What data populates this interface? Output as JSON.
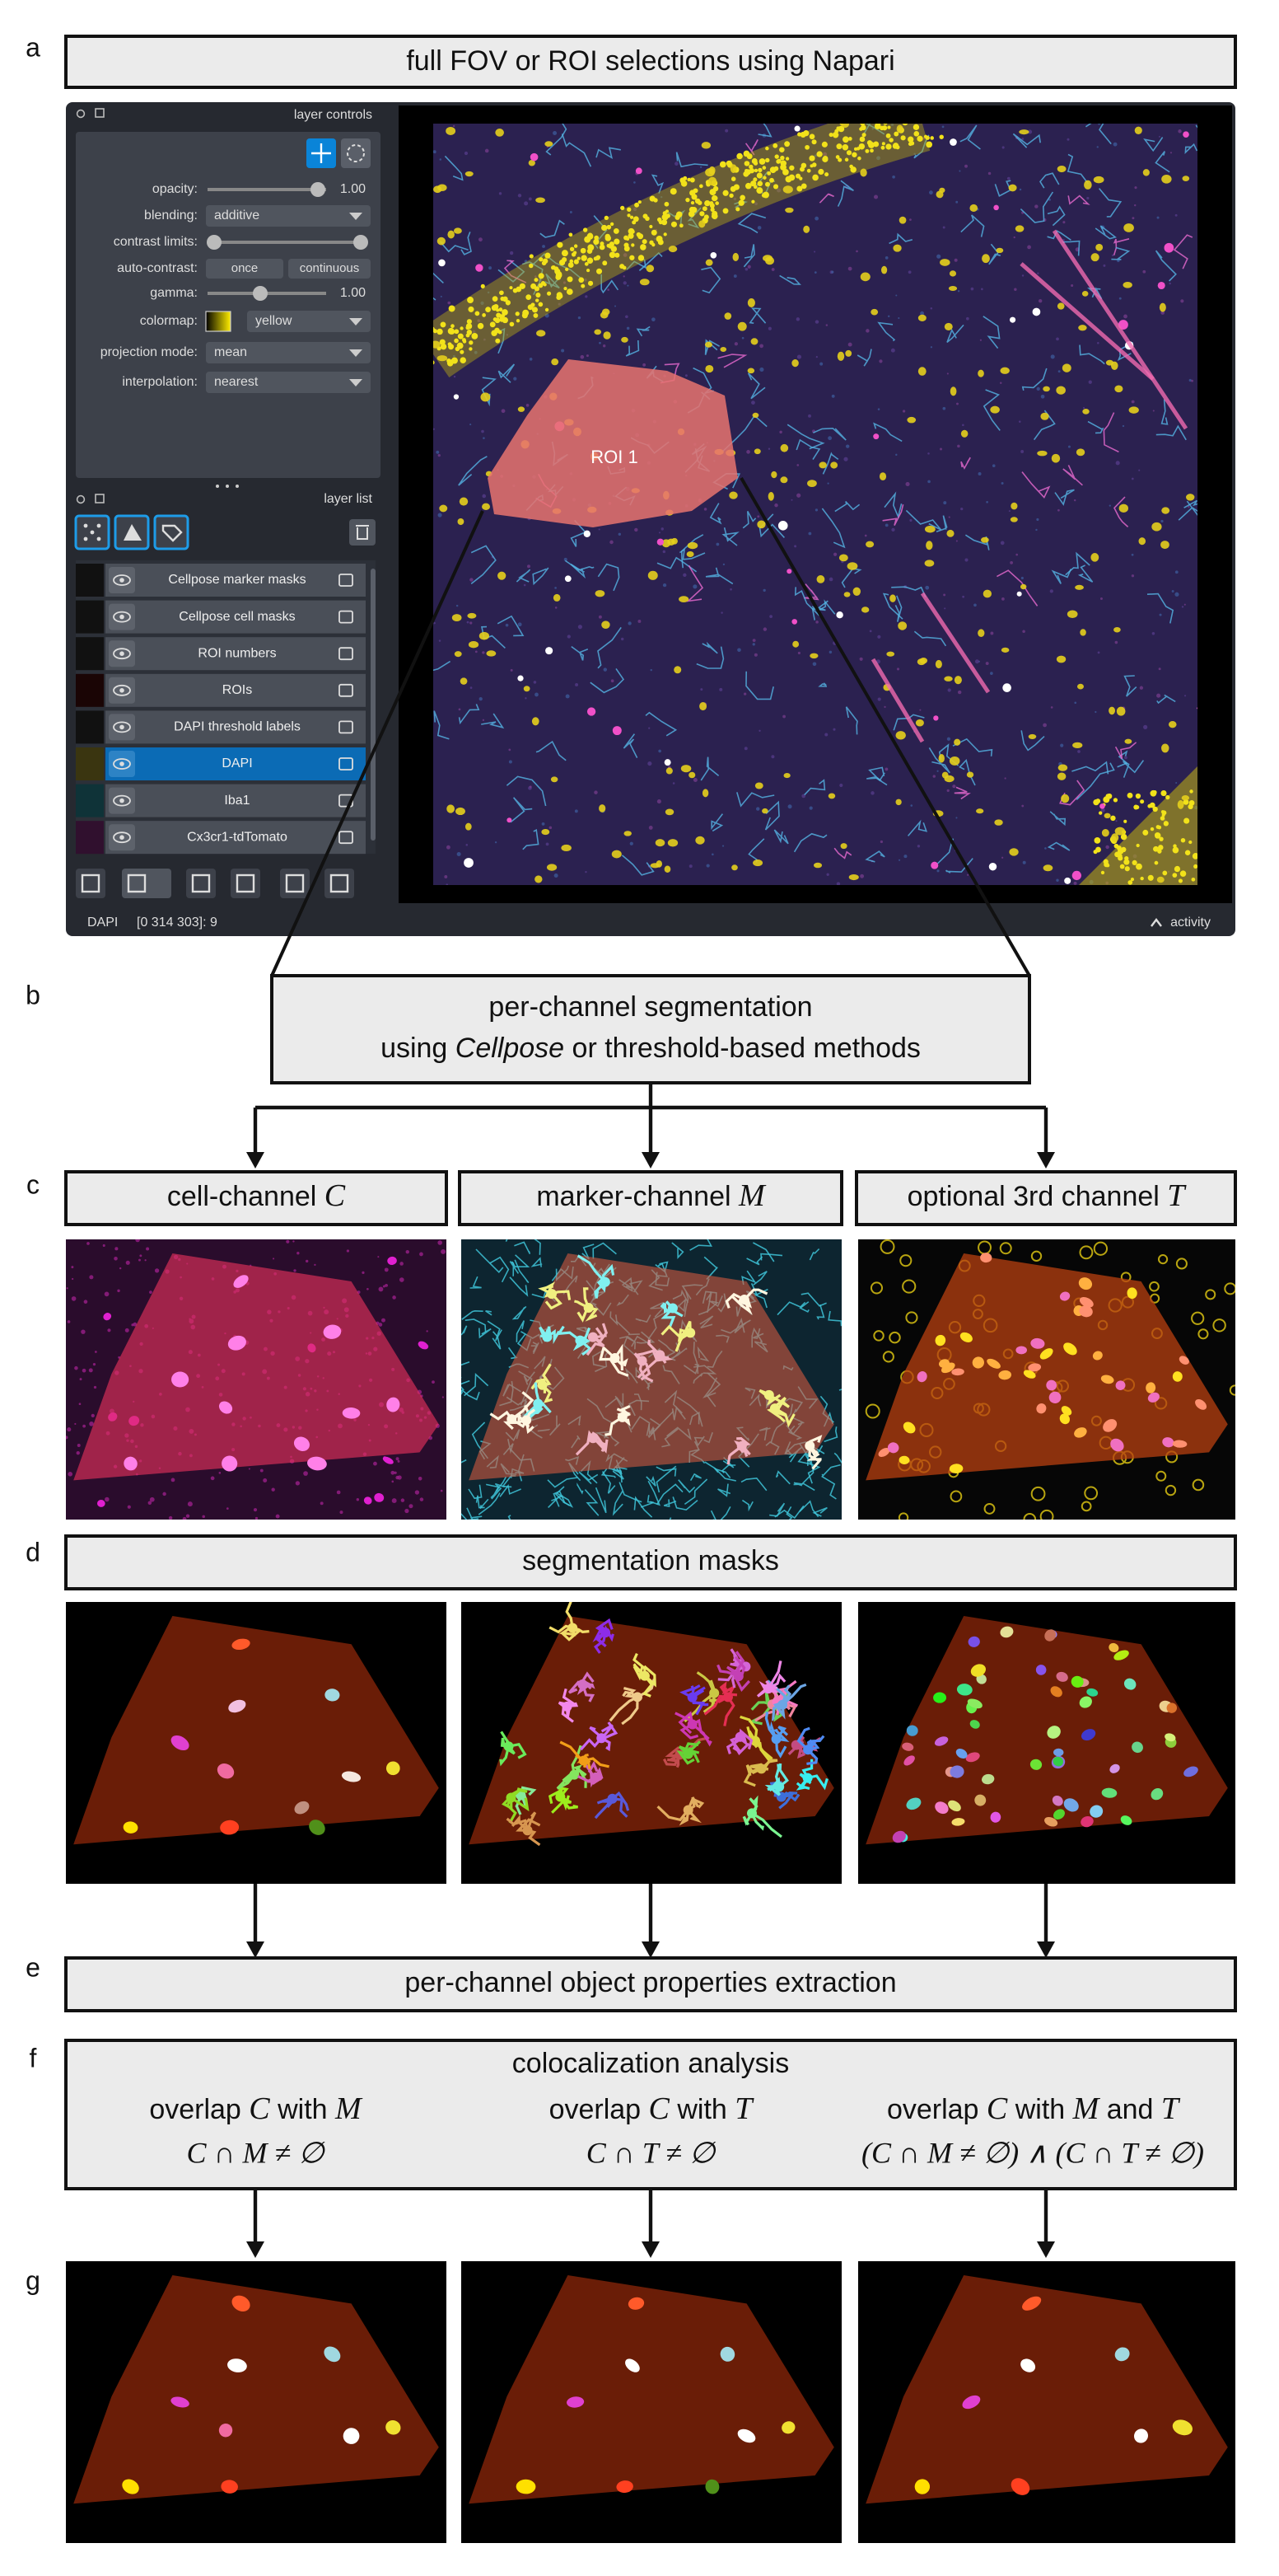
{
  "panel_labels": [
    "a",
    "b",
    "c",
    "d",
    "e",
    "f",
    "g"
  ],
  "a": {
    "title": "full FOV or ROI selections using Napari"
  },
  "napari": {
    "layer_controls_title": "layer controls",
    "controls": [
      {
        "label": "opacity:",
        "value": "1.00"
      },
      {
        "label": "blending:",
        "value": "additive"
      },
      {
        "label": "contrast limits:"
      },
      {
        "label": "auto-contrast:",
        "buttons": [
          "once",
          "continuous"
        ]
      },
      {
        "label": "gamma:",
        "value": "1.00"
      },
      {
        "label": "colormap:",
        "value": "yellow"
      },
      {
        "label": "projection mode:",
        "value": "mean"
      },
      {
        "label": "interpolation:",
        "value": "nearest"
      }
    ],
    "layer_list_title": "layer list",
    "layers": [
      {
        "name": "Cellpose marker masks",
        "selected": false
      },
      {
        "name": "Cellpose cell masks",
        "selected": false
      },
      {
        "name": "ROI numbers",
        "selected": false
      },
      {
        "name": "ROIs",
        "selected": false
      },
      {
        "name": "DAPI threshold labels",
        "selected": false
      },
      {
        "name": "DAPI",
        "selected": true
      },
      {
        "name": "Iba1",
        "selected": false
      },
      {
        "name": "Cx3cr1-tdTomato",
        "selected": false
      }
    ],
    "roi_label": "ROI 1",
    "status_layer": "DAPI",
    "status_coords": "[0 314 303]: 9",
    "activity": "activity"
  },
  "b": {
    "line1": "per-channel segmentation",
    "line2": [
      "using ",
      "Cellpose",
      " or threshold-based methods"
    ]
  },
  "c": {
    "headers": [
      [
        "cell-channel ",
        "C"
      ],
      [
        "marker-channel ",
        "M"
      ],
      [
        "optional 3rd channel ",
        "T"
      ]
    ]
  },
  "d": {
    "title": "segmentation masks"
  },
  "e": {
    "title": "per-channel object properties extraction"
  },
  "f": {
    "title": "colocalization analysis",
    "columns": [
      {
        "heading": [
          "overlap ",
          "C",
          " with ",
          "M"
        ],
        "formula": "C ∩ M ≠ ∅"
      },
      {
        "heading": [
          "overlap ",
          "C",
          " with ",
          "T"
        ],
        "formula": "C ∩ T ≠ ∅"
      },
      {
        "heading": [
          "overlap ",
          "C",
          " with ",
          "M",
          " and ",
          "T"
        ],
        "formula": "(C ∩ M ≠ ∅) ∧ (C ∩ T ≠ ∅)"
      }
    ]
  }
}
